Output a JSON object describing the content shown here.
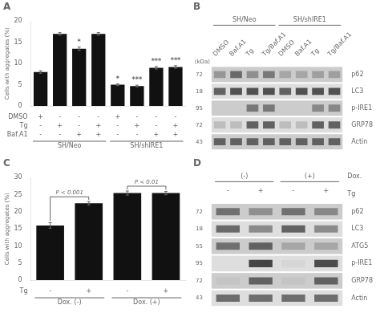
{
  "chart_data": [
    {
      "type": "bar",
      "title": "A",
      "categories": [
        null,
        null,
        null,
        null,
        null,
        null,
        null,
        null
      ],
      "values": [
        8.0,
        17.0,
        13.5,
        17.0,
        5.0,
        4.7,
        9.0,
        9.2
      ],
      "errors": [
        0.3,
        0.3,
        0.4,
        0.3,
        0.2,
        0.2,
        0.3,
        0.3
      ],
      "color": "#111111",
      "ylabel": "Cells with aggregates (%)",
      "ylim": [
        0,
        20
      ],
      "yticks": [
        0,
        5,
        10,
        15,
        20
      ],
      "grid": false,
      "tick_labels": "y",
      "annotations": [
        null,
        null,
        "*",
        null,
        "*",
        "***",
        "***",
        "***"
      ],
      "conditions": [
        {
          "label": "DMSO",
          "values": [
            "+",
            "-",
            "-",
            "-",
            "+",
            "-",
            "-",
            "-"
          ]
        },
        {
          "label": "Tg",
          "values": [
            "-",
            "+",
            "-",
            "+",
            "-",
            "+",
            "-",
            "+"
          ]
        },
        {
          "label": "Baf.A1",
          "values": [
            "-",
            "-",
            "+",
            "+",
            "-",
            "-",
            "+",
            "+"
          ]
        }
      ],
      "group_labels": [
        "SH/Neo",
        "SH/shIRE1"
      ]
    },
    {
      "type": "heatmap",
      "title": "B",
      "categories": [
        "DMSO",
        "Baf.A1",
        "Tg",
        "Tg/Baf.A1",
        "DMSO",
        "Baf.A1",
        "Tg",
        "Tg/Baf.A1"
      ],
      "group_labels": [
        "SH/Neo",
        "SH/shIRE1"
      ],
      "row_labels": [
        "p62",
        "LC3",
        "p-IRE1",
        "GRP78",
        "Actin"
      ],
      "kda_labels": [
        "72",
        "18",
        "95",
        "72",
        "43"
      ],
      "kda_header": "(kDa)",
      "color": "#000000",
      "cells": [
        [
          0.35,
          0.65,
          0.4,
          0.55,
          0.25,
          0.25,
          0.3,
          0.3
        ],
        [
          0.75,
          0.85,
          0.85,
          0.85,
          0.75,
          0.85,
          0.85,
          0.85
        ],
        [
          0.0,
          0.0,
          0.55,
          0.55,
          0.0,
          0.0,
          0.45,
          0.45
        ],
        [
          0.2,
          0.2,
          0.75,
          0.75,
          0.2,
          0.2,
          0.75,
          0.75
        ],
        [
          0.7,
          0.7,
          0.7,
          0.7,
          0.7,
          0.7,
          0.7,
          0.7
        ]
      ]
    },
    {
      "type": "bar",
      "title": "C",
      "categories": [
        null,
        null,
        null,
        null
      ],
      "values": [
        16.0,
        22.5,
        25.5,
        25.5
      ],
      "errors": [
        0.8,
        0.5,
        0.6,
        0.5
      ],
      "color": "#111111",
      "ylabel": "Cells with aggregates (%)",
      "ylim": [
        0,
        30
      ],
      "yticks": [
        0,
        5,
        10,
        15,
        20,
        25,
        30
      ],
      "grid": false,
      "tick_labels": "y",
      "brackets": [
        {
          "label": "P < 0.001",
          "between": [
            0,
            1
          ]
        },
        {
          "label": "P < 0.01",
          "between": [
            2,
            3
          ]
        }
      ],
      "conditions": [
        {
          "label": "Tg",
          "values": [
            "-",
            "+",
            "-",
            "+"
          ]
        }
      ],
      "group_labels": [
        "Dox. (-)",
        "Dox. (+)"
      ]
    },
    {
      "type": "heatmap",
      "title": "D",
      "categories": [
        "-",
        "+",
        "-",
        "+"
      ],
      "column_header": "Tg",
      "group_labels": [
        "(-)",
        "(+)"
      ],
      "group_header": "Dox.",
      "row_labels": [
        "p62",
        "LC3",
        "ATG5",
        "p-IRE1",
        "GRP78",
        "Actin"
      ],
      "kda_labels": [
        "72",
        "18",
        "55",
        "95",
        "72",
        "43"
      ],
      "color": "#000000",
      "cells": [
        [
          0.6,
          0.4,
          0.6,
          0.45
        ],
        [
          0.7,
          0.5,
          0.75,
          0.5
        ],
        [
          0.6,
          0.7,
          0.25,
          0.25
        ],
        [
          0.0,
          0.92,
          0.05,
          0.88
        ],
        [
          0.05,
          0.7,
          0.05,
          0.7
        ],
        [
          0.68,
          0.68,
          0.68,
          0.68
        ]
      ]
    }
  ]
}
